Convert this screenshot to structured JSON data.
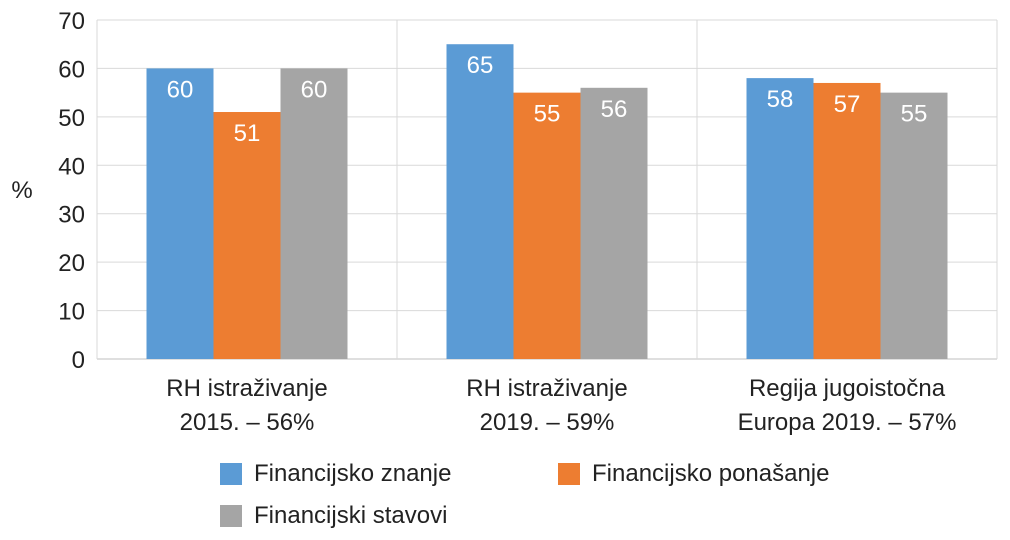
{
  "chart_data": {
    "type": "bar",
    "categories": [
      [
        "RH istraživanje",
        "2015. – 56%"
      ],
      [
        "RH istraživanje",
        "2019. – 59%"
      ],
      [
        "Regija jugoistočna",
        "Europa 2019. – 57%"
      ]
    ],
    "series": [
      {
        "name": "Financijsko znanje",
        "values": [
          60,
          65,
          58
        ],
        "color": "#5b9bd5"
      },
      {
        "name": "Financijsko ponašanje",
        "values": [
          51,
          55,
          57
        ],
        "color": "#ed7d31"
      },
      {
        "name": "Financijski stavovi",
        "values": [
          60,
          56,
          55
        ],
        "color": "#a5a5a5"
      }
    ],
    "ylabel": "%",
    "ylim": [
      0,
      70
    ],
    "yticks": [
      0,
      10,
      20,
      30,
      40,
      50,
      60,
      70
    ],
    "grid": true,
    "data_labels": true,
    "legend_position": "bottom"
  }
}
